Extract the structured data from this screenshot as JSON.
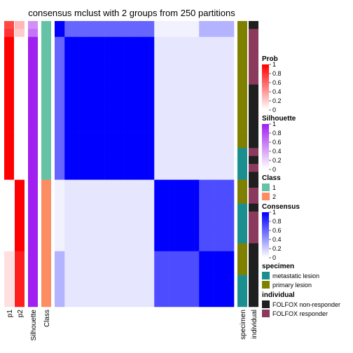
{
  "chart_data": {
    "type": "heatmap",
    "title": "consensus mclust with 2 groups from 250 partitions",
    "samples": 36,
    "annotation_columns": [
      "p1",
      "p2",
      "Silhouette",
      "Class"
    ],
    "annotation_rows": {
      "p1": [
        0.72,
        0.8,
        1,
        1,
        1,
        1,
        1,
        1,
        1,
        1,
        1,
        1,
        1,
        1,
        1,
        1,
        1,
        1,
        1,
        1,
        0,
        0,
        0,
        0,
        0,
        0,
        0,
        0,
        0,
        0.12,
        0.12,
        0.12,
        0.12,
        0.12,
        0.12,
        0.12
      ],
      "p2": [
        0.28,
        0.2,
        0,
        0,
        0,
        0,
        0,
        0,
        0,
        0,
        0,
        0,
        0,
        0,
        0,
        0,
        0,
        0,
        0,
        0,
        1,
        1,
        1,
        1,
        1,
        1,
        1,
        1,
        1,
        0.88,
        0.88,
        0.88,
        0.88,
        0.88,
        0.88,
        0.88
      ],
      "Silhouette": [
        0.5,
        0.62,
        1,
        1,
        1,
        1,
        1,
        1,
        1,
        1,
        1,
        1,
        1,
        1,
        1,
        1,
        1,
        1,
        1,
        1,
        1,
        1,
        1,
        1,
        1,
        1,
        1,
        1,
        1,
        1,
        1,
        1,
        1,
        1,
        1,
        1
      ],
      "Class": [
        1,
        1,
        1,
        1,
        1,
        1,
        1,
        1,
        1,
        1,
        1,
        1,
        1,
        1,
        1,
        1,
        1,
        1,
        1,
        1,
        2,
        2,
        2,
        2,
        2,
        2,
        2,
        2,
        2,
        2,
        2,
        2,
        2,
        2,
        2,
        2
      ]
    },
    "specimen": [
      "primary lesion",
      "primary lesion",
      "primary lesion",
      "primary lesion",
      "primary lesion",
      "primary lesion",
      "primary lesion",
      "primary lesion",
      "primary lesion",
      "primary lesion",
      "primary lesion",
      "primary lesion",
      "primary lesion",
      "primary lesion",
      "primary lesion",
      "primary lesion",
      "metastatic lesion",
      "metastatic lesion",
      "metastatic lesion",
      "metastatic lesion",
      "primary lesion",
      "primary lesion",
      "primary lesion",
      "metastatic lesion",
      "metastatic lesion",
      "metastatic lesion",
      "metastatic lesion",
      "metastatic lesion",
      "primary lesion",
      "primary lesion",
      "primary lesion",
      "primary lesion",
      "metastatic lesion",
      "metastatic lesion",
      "metastatic lesion",
      "metastatic lesion"
    ],
    "individual": [
      "FOLFOX non-responder",
      "FOLFOX responder",
      "FOLFOX responder",
      "FOLFOX responder",
      "FOLFOX responder",
      "FOLFOX responder",
      "FOLFOX responder",
      "FOLFOX responder",
      "FOLFOX non-responder",
      "FOLFOX non-responder",
      "FOLFOX non-responder",
      "FOLFOX non-responder",
      "FOLFOX non-responder",
      "FOLFOX non-responder",
      "FOLFOX non-responder",
      "FOLFOX non-responder",
      "FOLFOX responder",
      "FOLFOX non-responder",
      "FOLFOX responder",
      "FOLFOX non-responder",
      "FOLFOX non-responder",
      "FOLFOX responder",
      "FOLFOX responder",
      "FOLFOX non-responder",
      "FOLFOX responder",
      "FOLFOX responder",
      "FOLFOX responder",
      "FOLFOX responder",
      "FOLFOX non-responder",
      "FOLFOX non-responder",
      "FOLFOX non-responder",
      "FOLFOX non-responder",
      "FOLFOX non-responder",
      "FOLFOX non-responder",
      "FOLFOX non-responder",
      "FOLFOX non-responder"
    ],
    "consensus_groups": [
      {
        "rows": [
          0,
          1
        ],
        "class": 1
      },
      {
        "rows": [
          2,
          19
        ],
        "class": 1
      },
      {
        "rows": [
          20,
          28
        ],
        "class": 2
      },
      {
        "rows": [
          29,
          35
        ],
        "class": 2
      }
    ],
    "consensus_levels": {
      "within": 1.0,
      "between": 0.1,
      "group2_group3": 1.0,
      "group3_group4": 0.7,
      "group1_group2": 0.6,
      "group1_group3": 0.05,
      "group1_group4": 0.3
    },
    "legends": [
      {
        "title": "Prob",
        "type": "gradient",
        "low": "#ffffff",
        "high": "#ff0000",
        "ticks": [
          "1",
          "0.8",
          "0.6",
          "0.4",
          "0.2",
          "0"
        ]
      },
      {
        "title": "Silhouette",
        "type": "gradient",
        "low": "#ffffff",
        "high": "#a020f0",
        "ticks": [
          "1",
          "0.8",
          "0.6",
          "0.4",
          "0.2",
          "0"
        ]
      },
      {
        "title": "Class",
        "type": "discrete",
        "items": [
          {
            "label": "1",
            "color": "#66c2a5"
          },
          {
            "label": "2",
            "color": "#fc8d62"
          }
        ]
      },
      {
        "title": "Consensus",
        "type": "gradient",
        "low": "#ffffff",
        "high": "#0000ff",
        "ticks": [
          "1",
          "0.8",
          "0.6",
          "0.4",
          "0.2",
          "0"
        ]
      },
      {
        "title": "specimen",
        "type": "discrete",
        "items": [
          {
            "label": "metastatic lesion",
            "color": "#1b8f8f"
          },
          {
            "label": "primary lesion",
            "color": "#808000"
          }
        ]
      },
      {
        "title": "individual",
        "type": "discrete",
        "items": [
          {
            "label": "FOLFOX non-responder",
            "color": "#1f1f1f"
          },
          {
            "label": "FOLFOX responder",
            "color": "#8b3a5e"
          }
        ]
      }
    ],
    "xlabels": [
      "p1",
      "p2",
      "Silhouette",
      "Class",
      "specimen",
      "individual"
    ]
  },
  "colors": {
    "prob": "#ff0000",
    "silhouette": "#a020f0",
    "consensus": "#0000ff",
    "class_1": "#66c2a5",
    "class_2": "#fc8d62",
    "metastatic": "#1b8f8f",
    "primary": "#808000",
    "non_responder": "#1f1f1f",
    "responder": "#8b3a5e"
  }
}
